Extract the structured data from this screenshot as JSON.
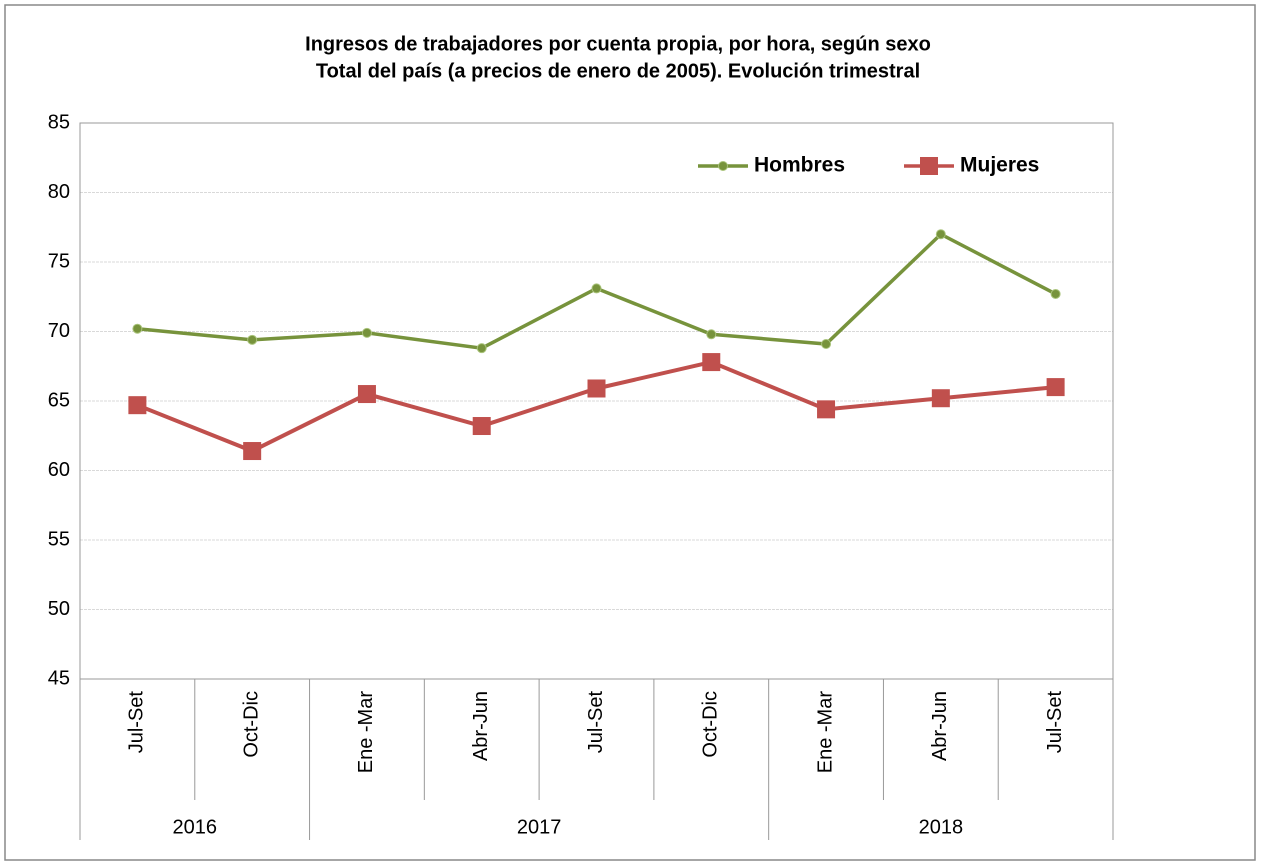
{
  "chart_data": {
    "type": "line",
    "title": [
      "Ingresos de trabajadores por cuenta propia, por hora, según sexo",
      "Total del país (a precios de enero de 2005). Evolución trimestral"
    ],
    "categories": [
      "Jul-Set",
      "Oct-Dic",
      "Ene -Mar",
      "Abr-Jun",
      "Jul-Set",
      "Oct-Dic",
      "Ene -Mar",
      "Abr-Jun",
      "Jul-Set"
    ],
    "groups": [
      {
        "label": "2016",
        "count": 2
      },
      {
        "label": "2017",
        "count": 4
      },
      {
        "label": "2018",
        "count": 3
      }
    ],
    "series": [
      {
        "name": "Hombres",
        "color": "#77933c",
        "marker": "circle",
        "values": [
          70.2,
          69.4,
          69.9,
          68.8,
          73.1,
          69.8,
          69.1,
          77.0,
          72.7
        ]
      },
      {
        "name": "Mujeres",
        "color": "#c0504d",
        "marker": "square",
        "values": [
          64.7,
          61.4,
          65.5,
          63.2,
          65.9,
          67.8,
          64.4,
          65.2,
          66.0
        ]
      }
    ],
    "ylim": [
      45,
      85
    ],
    "yticks": [
      45,
      50,
      55,
      60,
      65,
      70,
      75,
      80,
      85
    ],
    "grid": true,
    "legend": "upper right"
  }
}
